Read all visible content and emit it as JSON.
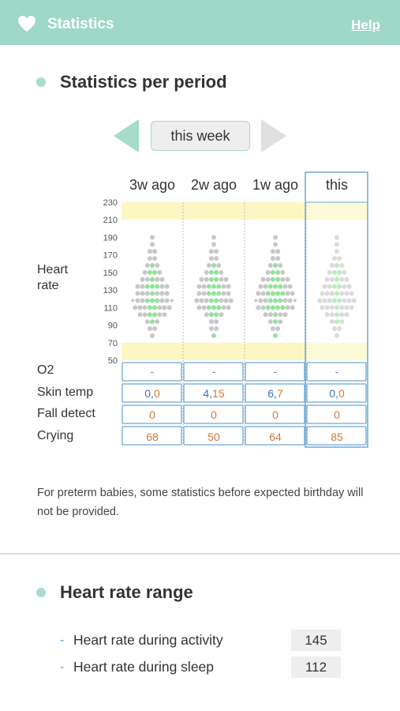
{
  "header": {
    "title": "Statistics",
    "help_label": "Help",
    "bg_color": "#9fd8c6"
  },
  "statistics": {
    "section_title": "Statistics per period",
    "period_label": "this week",
    "columns": [
      "3w ago",
      "2w ago",
      "1w ago",
      "this"
    ],
    "heart_rate_label_line1": "Heart",
    "heart_rate_label_line2": "rate",
    "y_ticks": [
      "230",
      "210",
      "190",
      "170",
      "150",
      "130",
      "110",
      "90",
      "70",
      "50"
    ],
    "rows": [
      {
        "label": "O2",
        "values": [
          "-",
          "-",
          "-",
          "-"
        ]
      },
      {
        "label": "Skin temp",
        "values": [
          [
            "0",
            "0"
          ],
          [
            "4",
            "15"
          ],
          [
            "6",
            "7"
          ],
          [
            "0",
            "0"
          ]
        ]
      },
      {
        "label": "Fall detect",
        "values": [
          "0",
          "0",
          "0",
          "0"
        ]
      },
      {
        "label": "Crying",
        "values": [
          "68",
          "50",
          "64",
          "85"
        ]
      }
    ]
  },
  "chart_data": {
    "type": "scatter",
    "title": "",
    "ylabel": "Heart rate",
    "categories": [
      "3w ago",
      "2w ago",
      "1w ago",
      "this"
    ],
    "ylim": [
      50,
      230
    ],
    "y_ticks": [
      230,
      210,
      190,
      170,
      150,
      130,
      110,
      90,
      70,
      50
    ],
    "highlight_bands": [
      [
        210,
        230
      ],
      [
        50,
        70
      ]
    ],
    "highlight_color": "#fcf7c2",
    "gray_color": "#c8c8c8",
    "green_color": "#92e39b",
    "distributions": [
      {
        "column": "3w ago",
        "rows": [
          {
            "hr": 190,
            "gray": 1,
            "green": 0
          },
          {
            "hr": 182,
            "gray": 1,
            "green": 0
          },
          {
            "hr": 174,
            "gray": 2,
            "green": 0
          },
          {
            "hr": 166,
            "gray": 1,
            "green": 1
          },
          {
            "hr": 158,
            "gray": 2,
            "green": 1
          },
          {
            "hr": 150,
            "gray": 2,
            "green": 2
          },
          {
            "hr": 142,
            "gray": 3,
            "green": 2
          },
          {
            "hr": 134,
            "gray": 4,
            "green": 3
          },
          {
            "hr": 126,
            "gray": 5,
            "green": 2
          },
          {
            "hr": 118,
            "gray": 6,
            "green": 3
          },
          {
            "hr": 110,
            "gray": 5,
            "green": 3
          },
          {
            "hr": 102,
            "gray": 3,
            "green": 3
          },
          {
            "hr": 94,
            "gray": 2,
            "green": 1
          },
          {
            "hr": 86,
            "gray": 1,
            "green": 1
          },
          {
            "hr": 78,
            "gray": 1,
            "green": 0
          }
        ]
      },
      {
        "column": "2w ago",
        "rows": [
          {
            "hr": 190,
            "gray": 1,
            "green": 0
          },
          {
            "hr": 182,
            "gray": 1,
            "green": 0
          },
          {
            "hr": 174,
            "gray": 1,
            "green": 1
          },
          {
            "hr": 166,
            "gray": 1,
            "green": 1
          },
          {
            "hr": 158,
            "gray": 1,
            "green": 2
          },
          {
            "hr": 150,
            "gray": 2,
            "green": 2
          },
          {
            "hr": 142,
            "gray": 3,
            "green": 3
          },
          {
            "hr": 134,
            "gray": 4,
            "green": 3
          },
          {
            "hr": 126,
            "gray": 4,
            "green": 3
          },
          {
            "hr": 118,
            "gray": 5,
            "green": 3
          },
          {
            "hr": 110,
            "gray": 4,
            "green": 3
          },
          {
            "hr": 102,
            "gray": 2,
            "green": 2
          },
          {
            "hr": 94,
            "gray": 1,
            "green": 1
          },
          {
            "hr": 86,
            "gray": 1,
            "green": 1
          },
          {
            "hr": 78,
            "gray": 0,
            "green": 1
          }
        ]
      },
      {
        "column": "1w ago",
        "rows": [
          {
            "hr": 190,
            "gray": 1,
            "green": 0
          },
          {
            "hr": 182,
            "gray": 1,
            "green": 0
          },
          {
            "hr": 174,
            "gray": 1,
            "green": 1
          },
          {
            "hr": 166,
            "gray": 1,
            "green": 1
          },
          {
            "hr": 158,
            "gray": 2,
            "green": 1
          },
          {
            "hr": 150,
            "gray": 2,
            "green": 2
          },
          {
            "hr": 142,
            "gray": 3,
            "green": 3
          },
          {
            "hr": 134,
            "gray": 3,
            "green": 4
          },
          {
            "hr": 126,
            "gray": 4,
            "green": 4
          },
          {
            "hr": 118,
            "gray": 5,
            "green": 4
          },
          {
            "hr": 110,
            "gray": 4,
            "green": 4
          },
          {
            "hr": 102,
            "gray": 3,
            "green": 2
          },
          {
            "hr": 94,
            "gray": 2,
            "green": 1
          },
          {
            "hr": 86,
            "gray": 1,
            "green": 1
          },
          {
            "hr": 78,
            "gray": 0,
            "green": 1
          }
        ]
      },
      {
        "column": "this",
        "rows": [
          {
            "hr": 190,
            "gray": 1,
            "green": 0
          },
          {
            "hr": 182,
            "gray": 1,
            "green": 0
          },
          {
            "hr": 174,
            "gray": 1,
            "green": 0
          },
          {
            "hr": 166,
            "gray": 2,
            "green": 0
          },
          {
            "hr": 158,
            "gray": 2,
            "green": 1
          },
          {
            "hr": 150,
            "gray": 2,
            "green": 2
          },
          {
            "hr": 142,
            "gray": 3,
            "green": 2
          },
          {
            "hr": 134,
            "gray": 4,
            "green": 2
          },
          {
            "hr": 126,
            "gray": 5,
            "green": 2
          },
          {
            "hr": 118,
            "gray": 6,
            "green": 2
          },
          {
            "hr": 110,
            "gray": 5,
            "green": 2
          },
          {
            "hr": 102,
            "gray": 3,
            "green": 2
          },
          {
            "hr": 94,
            "gray": 2,
            "green": 1
          },
          {
            "hr": 86,
            "gray": 1,
            "green": 1
          },
          {
            "hr": 78,
            "gray": 1,
            "green": 0
          }
        ]
      }
    ]
  },
  "note": "For preterm babies, some statistics before expected birthday will not be provided.",
  "range": {
    "section_title": "Heart rate range",
    "items": [
      {
        "label": "Heart rate during activity",
        "value": "145"
      },
      {
        "label": "Heart rate during sleep",
        "value": "112"
      }
    ]
  }
}
